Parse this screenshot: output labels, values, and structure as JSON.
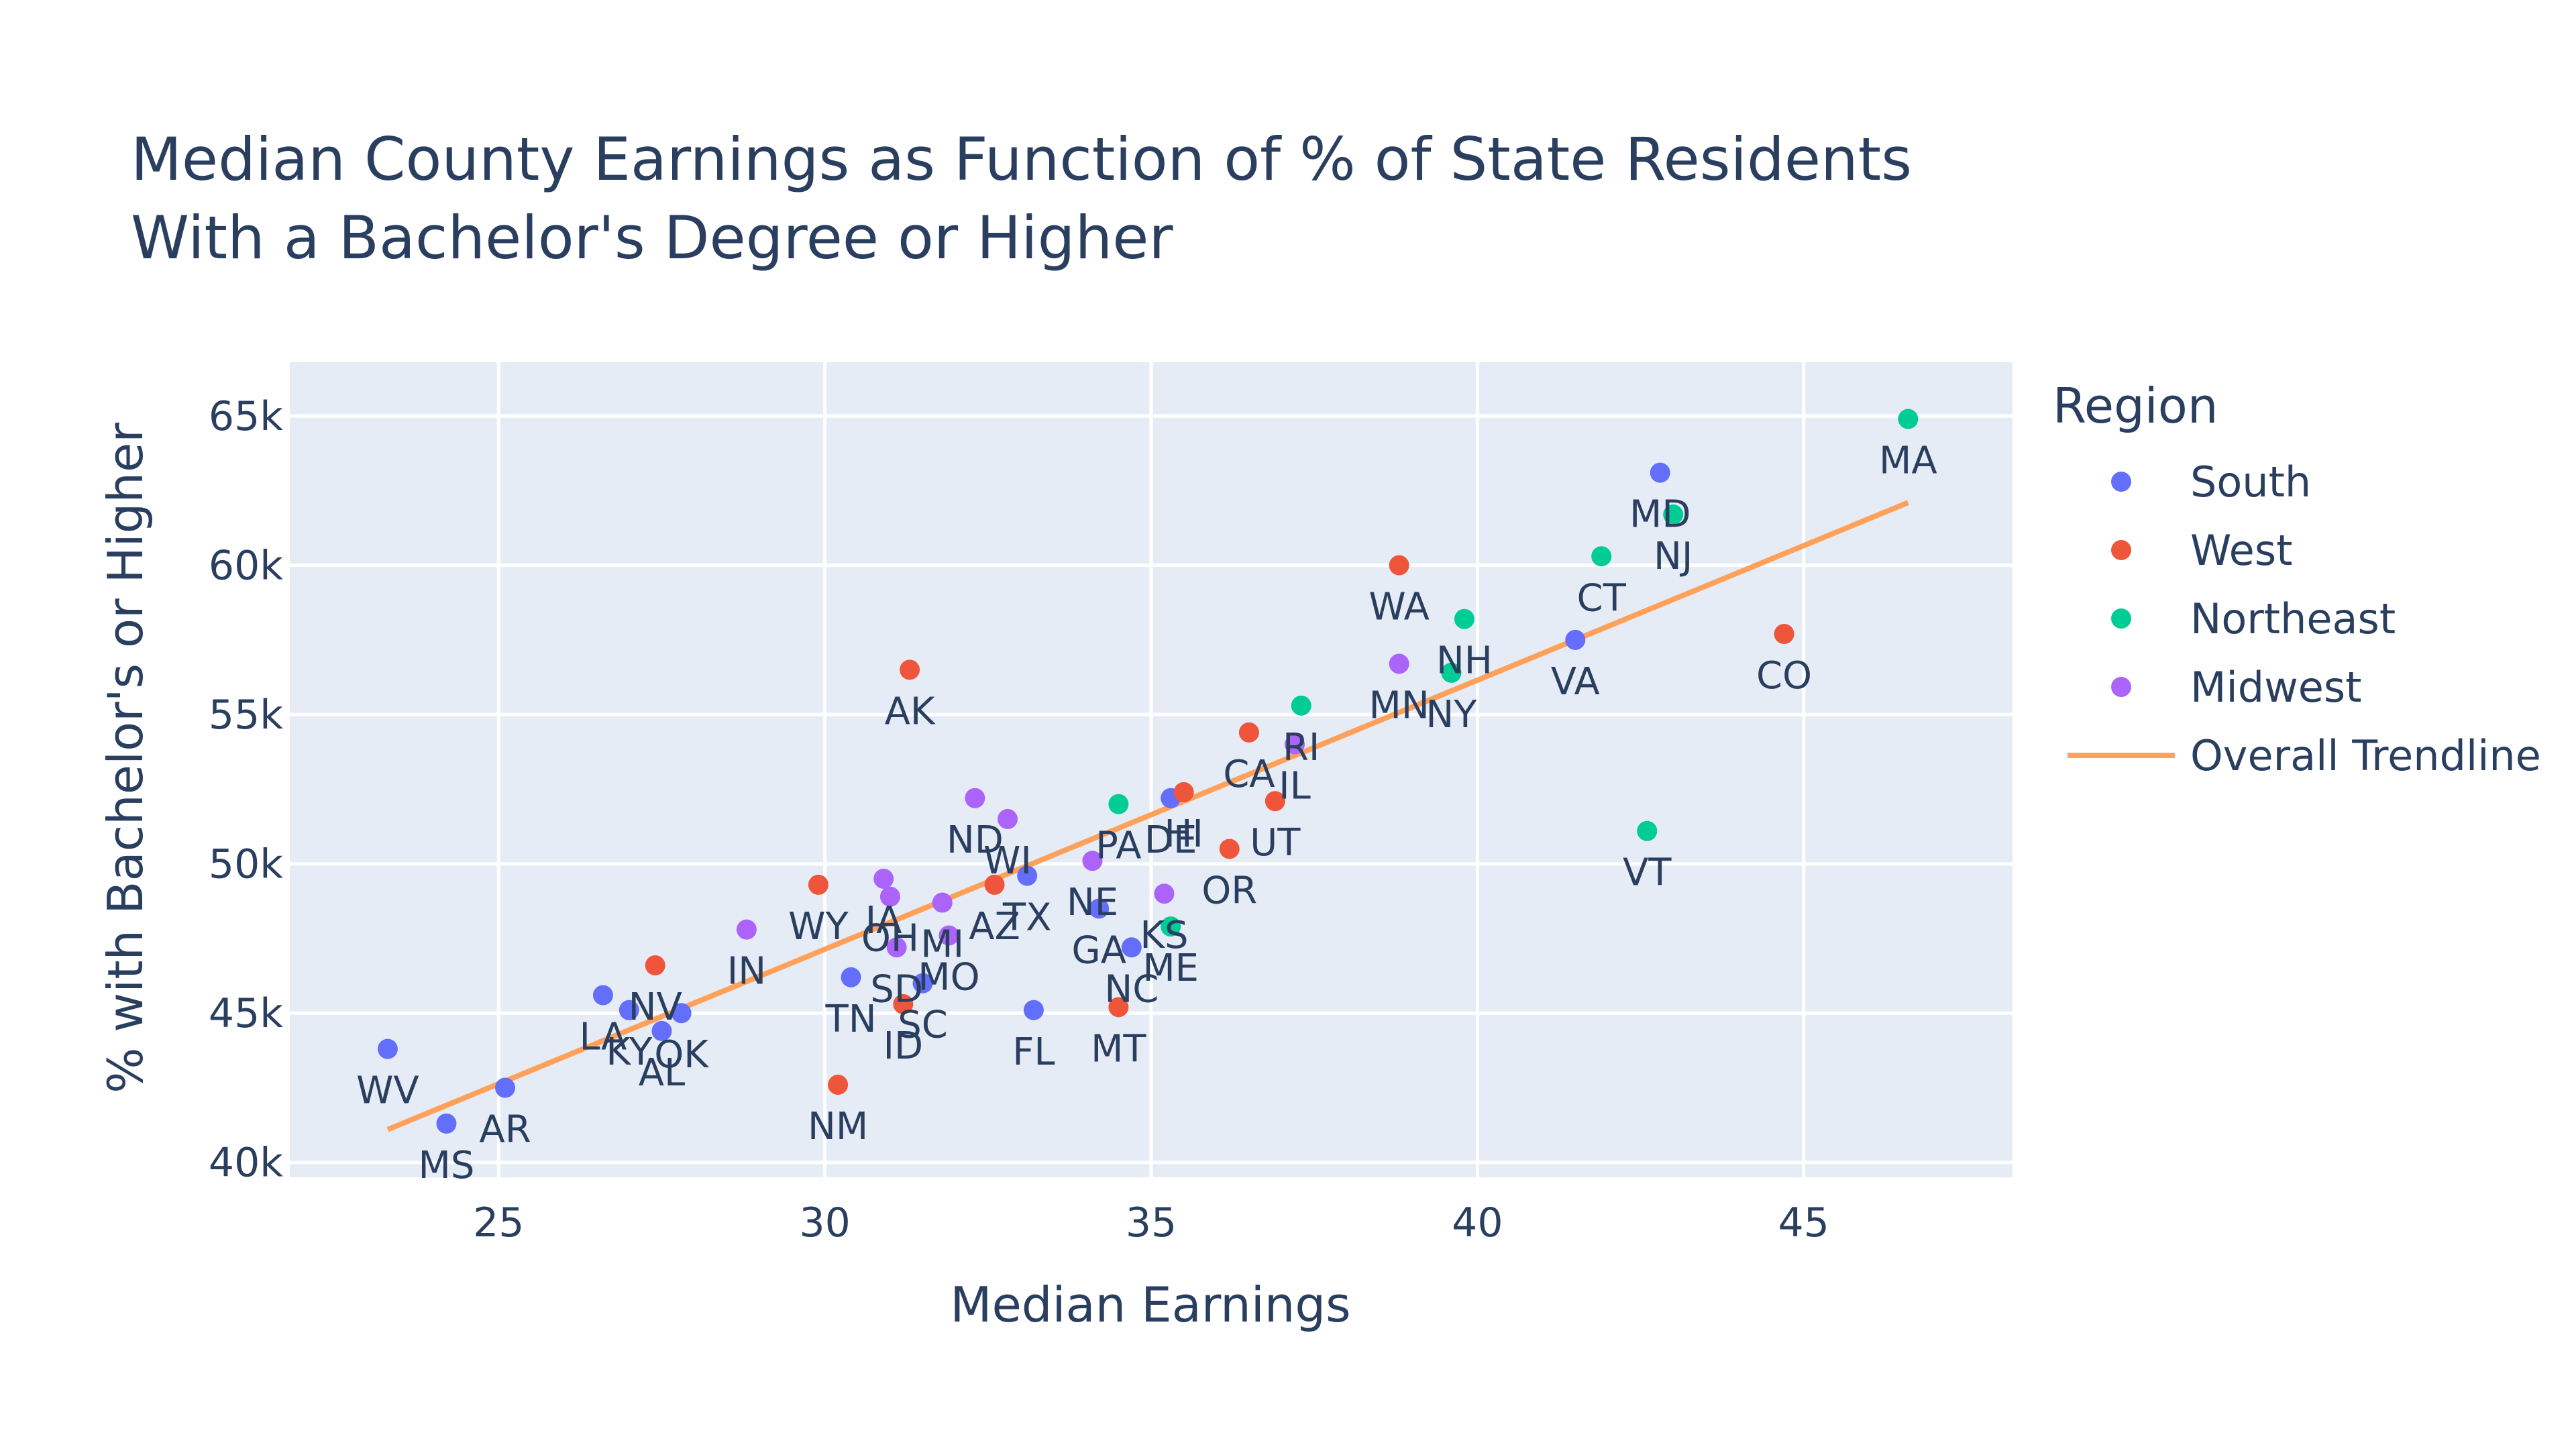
{
  "chart_data": {
    "type": "scatter",
    "title": [
      "Median County Earnings as Function of % of State Residents",
      "With a Bachelor's Degree or Higher"
    ],
    "xlabel": "Median Earnings",
    "ylabel": "% with Bachelor's or Higher",
    "xlim": [
      21.8,
      48.2
    ],
    "ylim": [
      39.5,
      66.8
    ],
    "x_ticks": [
      25,
      30,
      35,
      40,
      45
    ],
    "y_ticks": [
      40,
      45,
      50,
      55,
      60,
      65
    ],
    "x_tick_labels": [
      "25",
      "30",
      "35",
      "40",
      "45"
    ],
    "y_tick_labels": [
      "40k",
      "45k",
      "50k",
      "55k",
      "60k",
      "65k"
    ],
    "grid": true,
    "legend_title": "Region",
    "legend_position": "right",
    "colors": {
      "plot_bg": "#E5ECF6",
      "grid": "#FFFFFF",
      "trend": "#FFA15A"
    },
    "series": [
      {
        "name": "South",
        "color": "#636EFA",
        "points": [
          {
            "label": "WV",
            "x": 23.3,
            "y": 43.8
          },
          {
            "label": "MS",
            "x": 24.2,
            "y": 41.3
          },
          {
            "label": "AR",
            "x": 25.1,
            "y": 42.5
          },
          {
            "label": "LA",
            "x": 26.6,
            "y": 45.6
          },
          {
            "label": "KY",
            "x": 27.0,
            "y": 45.1
          },
          {
            "label": "AL",
            "x": 27.5,
            "y": 44.4
          },
          {
            "label": "OK",
            "x": 27.8,
            "y": 45.0
          },
          {
            "label": "TN",
            "x": 30.4,
            "y": 46.2
          },
          {
            "label": "SC",
            "x": 31.5,
            "y": 46.0
          },
          {
            "label": "TX",
            "x": 33.1,
            "y": 49.6
          },
          {
            "label": "FL",
            "x": 33.2,
            "y": 45.1
          },
          {
            "label": "GA",
            "x": 34.2,
            "y": 48.5
          },
          {
            "label": "NC",
            "x": 34.7,
            "y": 47.2
          },
          {
            "label": "DE",
            "x": 35.3,
            "y": 52.2
          },
          {
            "label": "VA",
            "x": 41.5,
            "y": 57.5
          },
          {
            "label": "MD",
            "x": 42.8,
            "y": 63.1
          }
        ]
      },
      {
        "name": "West",
        "color": "#EF553B",
        "points": [
          {
            "label": "NV",
            "x": 27.4,
            "y": 46.6
          },
          {
            "label": "WY",
            "x": 29.9,
            "y": 49.3
          },
          {
            "label": "NM",
            "x": 30.2,
            "y": 42.6
          },
          {
            "label": "ID",
            "x": 31.2,
            "y": 45.3
          },
          {
            "label": "AZ",
            "x": 32.6,
            "y": 49.3
          },
          {
            "label": "AK",
            "x": 31.3,
            "y": 56.5
          },
          {
            "label": "MT",
            "x": 34.5,
            "y": 45.2
          },
          {
            "label": "HI",
            "x": 35.5,
            "y": 52.4
          },
          {
            "label": "OR",
            "x": 36.2,
            "y": 50.5
          },
          {
            "label": "CA",
            "x": 36.5,
            "y": 54.4
          },
          {
            "label": "UT",
            "x": 36.9,
            "y": 52.1
          },
          {
            "label": "WA",
            "x": 38.8,
            "y": 60.0
          },
          {
            "label": "CO",
            "x": 44.7,
            "y": 57.7
          }
        ]
      },
      {
        "name": "Northeast",
        "color": "#00CC96",
        "points": [
          {
            "label": "PA",
            "x": 34.5,
            "y": 52.0
          },
          {
            "label": "ME",
            "x": 35.3,
            "y": 47.9
          },
          {
            "label": "RI",
            "x": 37.3,
            "y": 55.3
          },
          {
            "label": "NY",
            "x": 39.6,
            "y": 56.4
          },
          {
            "label": "NH",
            "x": 39.8,
            "y": 58.2
          },
          {
            "label": "CT",
            "x": 41.9,
            "y": 60.3
          },
          {
            "label": "VT",
            "x": 42.6,
            "y": 51.1
          },
          {
            "label": "NJ",
            "x": 43.0,
            "y": 61.7
          },
          {
            "label": "MA",
            "x": 46.6,
            "y": 64.9
          }
        ]
      },
      {
        "name": "Midwest",
        "color": "#AB63FA",
        "points": [
          {
            "label": "IN",
            "x": 28.8,
            "y": 47.8
          },
          {
            "label": "IA",
            "x": 30.9,
            "y": 49.5
          },
          {
            "label": "OH",
            "x": 31.0,
            "y": 48.9
          },
          {
            "label": "SD",
            "x": 31.1,
            "y": 47.2
          },
          {
            "label": "MI",
            "x": 31.8,
            "y": 48.7
          },
          {
            "label": "MO",
            "x": 31.9,
            "y": 47.6
          },
          {
            "label": "ND",
            "x": 32.3,
            "y": 52.2
          },
          {
            "label": "WI",
            "x": 32.8,
            "y": 51.5
          },
          {
            "label": "NE",
            "x": 34.1,
            "y": 50.1
          },
          {
            "label": "KS",
            "x": 35.2,
            "y": 49.0
          },
          {
            "label": "IL",
            "x": 37.2,
            "y": 54.0
          },
          {
            "label": "MN",
            "x": 38.8,
            "y": 56.7
          }
        ]
      }
    ],
    "trendline": {
      "name": "Overall Trendline",
      "color": "#FFA15A",
      "x": [
        23.3,
        46.6
      ],
      "y": [
        41.1,
        62.1
      ]
    }
  }
}
